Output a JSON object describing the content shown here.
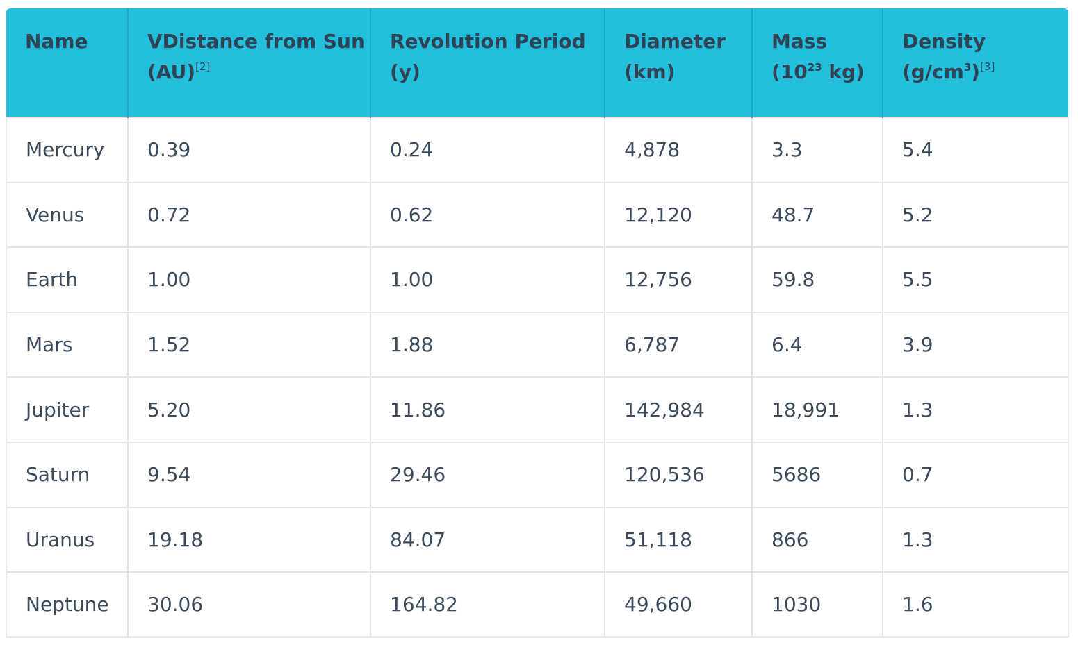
{
  "table": {
    "headers": [
      {
        "line1": "Name",
        "line2": "",
        "sup1": "",
        "line2_pre": "",
        "line2_post": "",
        "sup2": ""
      },
      {
        "line1": "VDistance from Sun",
        "line2_pre": "(AU)",
        "sup2": "[2]",
        "line2_post": ""
      },
      {
        "line1": "Revolution Period",
        "line2_pre": "(y)",
        "sup2": "",
        "line2_post": ""
      },
      {
        "line1": "Diameter",
        "line2_pre": "(km)",
        "sup2": "",
        "line2_post": ""
      },
      {
        "line1": "Mass",
        "line2_pre": "(10",
        "exp": "23",
        "line2_post": " kg)",
        "sup2": ""
      },
      {
        "line1": "Density",
        "line2_pre": "(g/cm",
        "exp": "3",
        "line2_post": ")",
        "sup2": "[3]"
      }
    ],
    "rows": [
      [
        "Mercury",
        "0.39",
        "0.24",
        "4,878",
        "3.3",
        "5.4"
      ],
      [
        "Venus",
        "0.72",
        "0.62",
        "12,120",
        "48.7",
        "5.2"
      ],
      [
        "Earth",
        "1.00",
        "1.00",
        "12,756",
        "59.8",
        "5.5"
      ],
      [
        "Mars",
        "1.52",
        "1.88",
        "6,787",
        "6.4",
        "3.9"
      ],
      [
        "Jupiter",
        "5.20",
        "11.86",
        "142,984",
        "18,991",
        "1.3"
      ],
      [
        "Saturn",
        "9.54",
        "29.46",
        "120,536",
        "5686",
        "0.7"
      ],
      [
        "Uranus",
        "19.18",
        "84.07",
        "51,118",
        "866",
        "1.3"
      ],
      [
        "Neptune",
        "30.06",
        "164.82",
        "49,660",
        "1030",
        "1.6"
      ]
    ]
  },
  "colors": {
    "header_bg": "#25bfde",
    "header_text": "#2f4354",
    "body_text": "#3b4b5c",
    "grid_line": "#e2e5e7"
  }
}
